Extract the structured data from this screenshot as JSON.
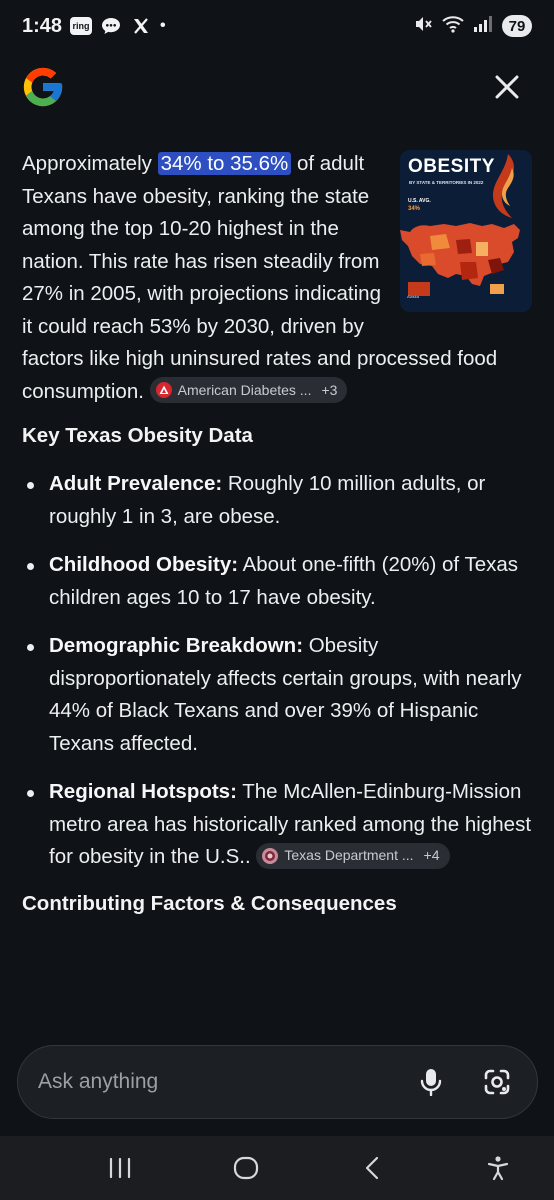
{
  "status_bar": {
    "time": "1:48",
    "notification_icons": [
      "ring-app-icon",
      "messages-icon",
      "x-app-icon",
      "dot-indicator"
    ],
    "ring_label": "ring",
    "dot": "•",
    "battery_level": "79"
  },
  "header": {
    "logo": "google-g-logo",
    "close_icon": "close-icon"
  },
  "thumbnail": {
    "title": "OBESITY",
    "subtitle": "BY STATE & TERRITORIES IN 2022",
    "us_avg_label": "U.S. AVG.",
    "us_avg_value": "34%"
  },
  "answer": {
    "lead_before": "Approximately ",
    "highlight": "34% to 35.6%",
    "lead_after": " of adult Texans have obesity, ranking the state among the top 10-20 highest in the nation. This rate has risen steadily from 27% in 2005, with projections indicating it could reach 53% by 2030, driven by factors like high uninsured rates and processed food consumption. ",
    "source_chip": {
      "label": "American Diabetes ...",
      "more": "+3",
      "icon": "american-diabetes-logo"
    }
  },
  "key_data": {
    "heading": "Key Texas Obesity Data",
    "items": [
      {
        "title": "Adult Prevalence:",
        "text": " Roughly 10 million adults, or roughly 1 in 3, are obese."
      },
      {
        "title": "Childhood Obesity:",
        "text": " About one-fifth (20%) of Texas children ages 10 to 17 have obesity."
      },
      {
        "title": "Demographic Breakdown:",
        "text": " Obesity disproportionately affects certain groups, with nearly 44% of Black Texans and over 39% of Hispanic Texans affected."
      },
      {
        "title": "Regional Hotspots:",
        "text": " The McAllen-Edinburg-Mission metro area has historically ranked among the highest for obesity in the U.S.. "
      }
    ],
    "source_chip": {
      "label": "Texas Department ...",
      "more": "+4",
      "icon": "texas-dept-logo"
    }
  },
  "contributing": {
    "heading": "Contributing Factors & Consequences"
  },
  "ask": {
    "placeholder": "Ask anything",
    "mic_icon": "microphone-icon",
    "lens_icon": "google-lens-icon"
  },
  "nav": {
    "icons": [
      "recent-apps-icon",
      "home-icon",
      "back-icon",
      "accessibility-icon"
    ]
  }
}
